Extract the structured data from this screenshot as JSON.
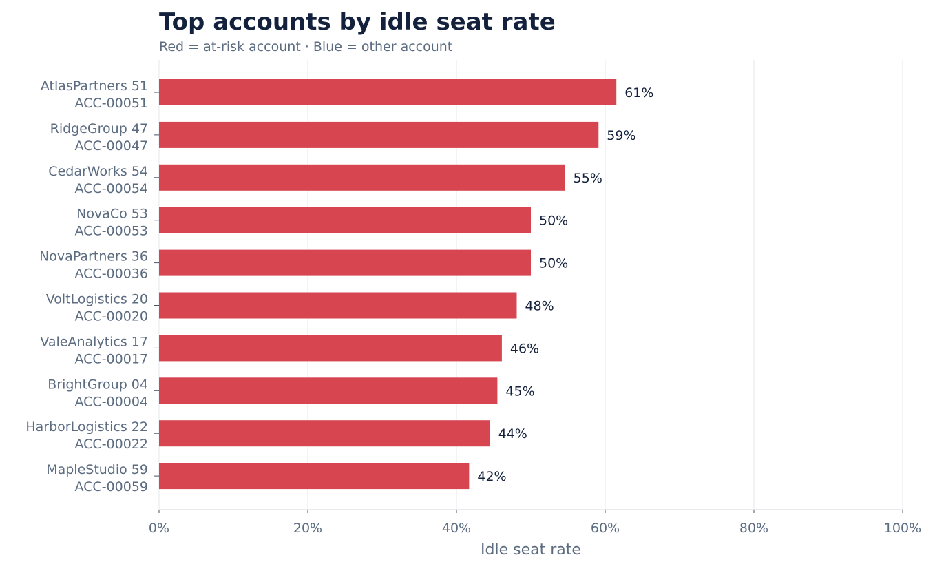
{
  "chart_data": {
    "type": "bar",
    "orientation": "horizontal",
    "title": "Top accounts by idle seat rate",
    "subtitle": "Red = at-risk account · Blue = other account",
    "xlabel": "Idle seat rate",
    "ylabel": "",
    "xlim": [
      0,
      100
    ],
    "x_unit": "%",
    "xticks": [
      "0%",
      "20%",
      "40%",
      "60%",
      "80%",
      "100%"
    ],
    "grid": "vertical",
    "legend": "none",
    "colors": {
      "at_risk": "#d64550",
      "other": "#3b82f6"
    },
    "categories": [
      {
        "name": "AtlasPartners 51",
        "id": "ACC-00051"
      },
      {
        "name": "RidgeGroup 47",
        "id": "ACC-00047"
      },
      {
        "name": "CedarWorks 54",
        "id": "ACC-00054"
      },
      {
        "name": "NovaCo 53",
        "id": "ACC-00053"
      },
      {
        "name": "NovaPartners 36",
        "id": "ACC-00036"
      },
      {
        "name": "VoltLogistics 20",
        "id": "ACC-00020"
      },
      {
        "name": "ValeAnalytics 17",
        "id": "ACC-00017"
      },
      {
        "name": "BrightGroup 04",
        "id": "ACC-00004"
      },
      {
        "name": "HarborLogistics 22",
        "id": "ACC-00022"
      },
      {
        "name": "MapleStudio 59",
        "id": "ACC-00059"
      }
    ],
    "values": [
      61.5,
      59.1,
      54.6,
      50.0,
      50.0,
      48.1,
      46.1,
      45.5,
      44.5,
      41.7
    ],
    "data_labels": [
      "61%",
      "59%",
      "55%",
      "50%",
      "50%",
      "48%",
      "46%",
      "45%",
      "44%",
      "42%"
    ],
    "at_risk": [
      true,
      true,
      true,
      true,
      true,
      true,
      true,
      true,
      true,
      true
    ]
  }
}
